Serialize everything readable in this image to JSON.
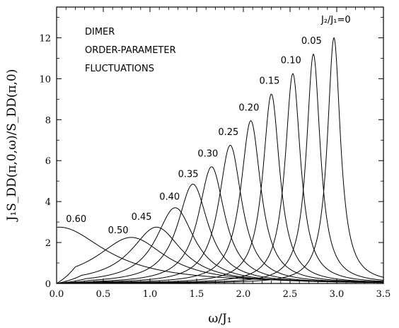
{
  "chart_data": {
    "type": "line",
    "xlabel": "ω/J₁",
    "ylabel": "J₁S_DD(π,0,ω)/S_DD(π,0)",
    "xlim": [
      0,
      3.5
    ],
    "ylim": [
      0,
      13.5
    ],
    "xticks": [
      "0.0",
      "0.5",
      "1.0",
      "1.5",
      "2.0",
      "2.5",
      "3.0",
      "3.5"
    ],
    "yticks": [
      "0",
      "2",
      "4",
      "6",
      "8",
      "10",
      "12"
    ],
    "grid": false,
    "annotation_lines": [
      "DIMER",
      "ORDER-PARAMETER",
      "FLUCTUATIONS"
    ],
    "series_label_title": "J₂/J₁=0",
    "series": [
      {
        "name": "0",
        "peak_x": 2.97,
        "peak_y": 12.0,
        "width": 0.085
      },
      {
        "name": "0.05",
        "peak_x": 2.75,
        "peak_y": 11.2,
        "width": 0.09
      },
      {
        "name": "0.10",
        "peak_x": 2.53,
        "peak_y": 10.25,
        "width": 0.1
      },
      {
        "name": "0.15",
        "peak_x": 2.3,
        "peak_y": 9.25,
        "width": 0.11
      },
      {
        "name": "0.20",
        "peak_x": 2.08,
        "peak_y": 7.95,
        "width": 0.13
      },
      {
        "name": "0.25",
        "peak_x": 1.86,
        "peak_y": 6.75,
        "width": 0.15
      },
      {
        "name": "0.30",
        "peak_x": 1.66,
        "peak_y": 5.7,
        "width": 0.17
      },
      {
        "name": "0.35",
        "peak_x": 1.46,
        "peak_y": 4.85,
        "width": 0.2
      },
      {
        "name": "0.40",
        "peak_x": 1.27,
        "peak_y": 3.7,
        "width": 0.25
      },
      {
        "name": "0.45",
        "peak_x": 1.07,
        "peak_y": 2.75,
        "width": 0.33
      },
      {
        "name": "0.50",
        "peak_x": 0.8,
        "peak_y": 2.25,
        "width": 0.45
      },
      {
        "name": "0.60",
        "peak_x": 0.03,
        "peak_y": 2.75,
        "width": 0.6
      }
    ],
    "curve_labels": [
      {
        "text": "0.05",
        "x": 2.62,
        "y": 11.7
      },
      {
        "text": "0.10",
        "x": 2.4,
        "y": 10.75
      },
      {
        "text": "0.15",
        "x": 2.17,
        "y": 9.75
      },
      {
        "text": "0.20",
        "x": 1.95,
        "y": 8.45
      },
      {
        "text": "0.25",
        "x": 1.73,
        "y": 7.25
      },
      {
        "text": "0.30",
        "x": 1.51,
        "y": 6.2
      },
      {
        "text": "0.35",
        "x": 1.3,
        "y": 5.2
      },
      {
        "text": "0.40",
        "x": 1.1,
        "y": 4.1
      },
      {
        "text": "0.45",
        "x": 0.8,
        "y": 3.1
      },
      {
        "text": "0.50",
        "x": 0.55,
        "y": 2.45
      },
      {
        "text": "0.60",
        "x": 0.1,
        "y": 3.0
      }
    ]
  }
}
